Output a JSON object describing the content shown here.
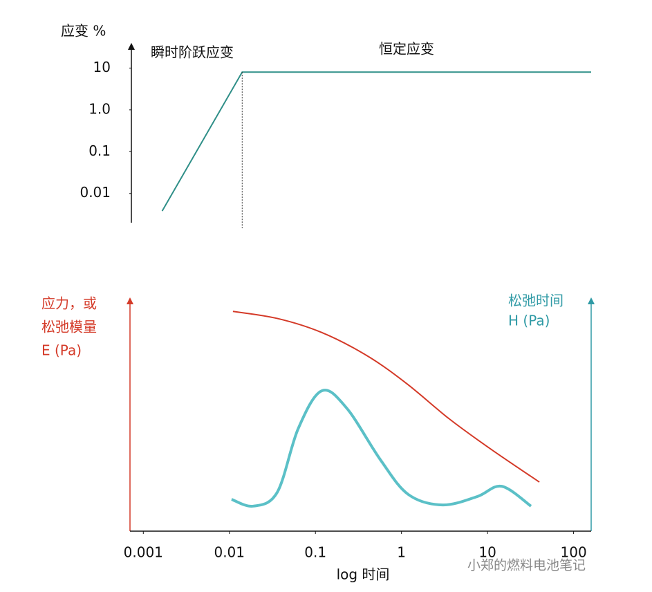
{
  "chart_data": [
    {
      "type": "line",
      "y_label": "应变 %",
      "annotations": [
        "瞬时阶跃应变",
        "恒定应变"
      ],
      "xlog": true,
      "ylog": true,
      "xlim": [
        0.0007,
        160
      ],
      "ylim": [
        0.002,
        40
      ],
      "yticks": [
        10,
        {
          "value": 1,
          "label": "1.0"
        },
        0.1,
        0.01
      ],
      "series": [
        {
          "name": "应变",
          "color": "#2f8f88",
          "x": [
            0.0016,
            0.0137,
            160
          ],
          "values": [
            0.0038,
            8,
            8
          ]
        }
      ]
    },
    {
      "type": "line",
      "y_label": [
        "应力，或",
        "松弛模量",
        "E (Pa)"
      ],
      "y2_label": [
        "松弛时间",
        "H (Pa)"
      ],
      "x_label": "log 时间",
      "watermark": "小郑的燃料电池笔记",
      "xlog": true,
      "xlim": [
        0.0007,
        160
      ],
      "xticks": [
        0.001,
        0.01,
        0.1,
        1,
        10,
        100
      ],
      "ylim": [
        0,
        100
      ],
      "y2lim": [
        0,
        100
      ],
      "y_color": "#d43a28",
      "y2_color": "#2f9aa5",
      "series": [
        {
          "color": "#d43a28",
          "x": [
            0.011,
            0.036,
            0.118,
            0.4,
            1.16,
            3.6,
            11,
            40
          ],
          "values": [
            94,
            91,
            85,
            75,
            63,
            48,
            35,
            21
          ]
        },
        {
          "color": "#5bc0c7",
          "axis": "y2",
          "x": [
            0.0106,
            0.019,
            0.036,
            0.063,
            0.118,
            0.23,
            0.57,
            1.2,
            3.0,
            7.6,
            14.6,
            32
          ],
          "values": [
            13.6,
            10.7,
            16.6,
            43.8,
            60,
            52.7,
            30.5,
            15.7,
            11.2,
            14.8,
            19.2,
            10.7
          ]
        }
      ]
    }
  ]
}
